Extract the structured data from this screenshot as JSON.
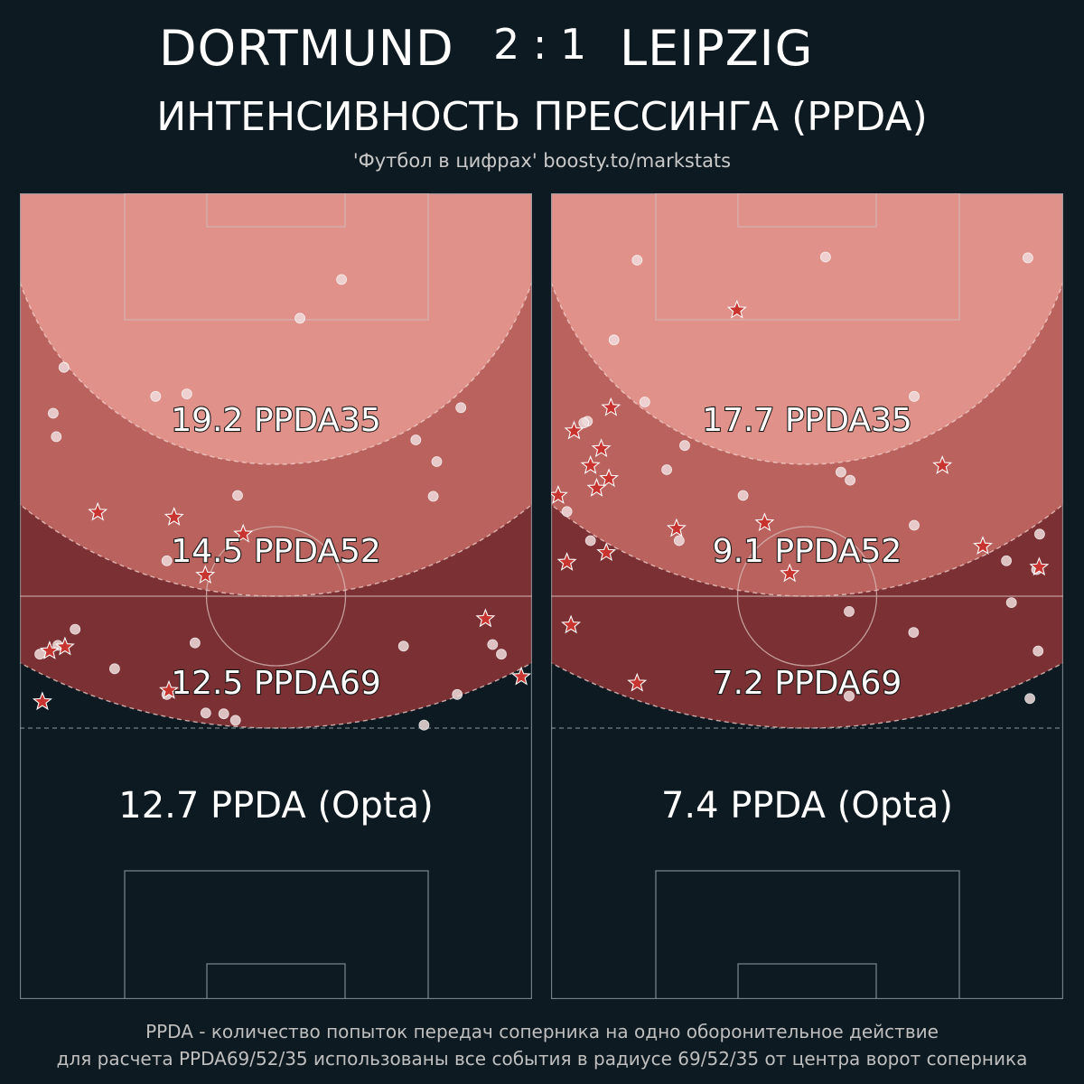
{
  "header": {
    "home_team": "DORTMUND",
    "score": "2 : 1",
    "away_team": "LEIPZIG",
    "subtitle": "ИНТЕНСИВНОСТЬ ПРЕССИНГА (PPDA)",
    "source": "'Футбол в цифрах' boosty.to/markstats"
  },
  "footnote": {
    "line1": "PPDA - количество попыток передач соперника на одно оборонительное действие",
    "line2": "для расчета PPDA69/52/35 использованы все события в радиусе 69/52/35 от центра ворот соперника"
  },
  "colors": {
    "background": "#0e1a22",
    "zone35": "#e0918a",
    "zone52": "#b9625e",
    "zone69": "#7b3033",
    "point_fill": "#f0dcdc",
    "star_fill": "#c8342f"
  },
  "chart_data": [
    {
      "type": "scatter",
      "team": "DORTMUND",
      "units": "pitch 0-100 (x across, y from opponent goal line)",
      "labels": {
        "ppda35": "19.2 PPDA35",
        "ppda52": "14.5 PPDA52",
        "ppda69": "12.5 PPDA69",
        "opta": "12.7 PPDA (Opta)"
      },
      "values": {
        "ppda35": 19.2,
        "ppda52": 14.5,
        "ppda69": 12.5,
        "opta": 12.7
      },
      "passes": [
        [
          62.8,
          10.7
        ],
        [
          54.7,
          15.5
        ],
        [
          8.6,
          21.6
        ],
        [
          26.5,
          25.2
        ],
        [
          32.6,
          24.9
        ],
        [
          6.5,
          27.3
        ],
        [
          7.1,
          30.2
        ],
        [
          86.1,
          26.6
        ],
        [
          77.3,
          30.6
        ],
        [
          81.4,
          33.3
        ],
        [
          80.7,
          37.6
        ],
        [
          42.5,
          37.5
        ],
        [
          28.7,
          45.6
        ],
        [
          10.8,
          54.1
        ],
        [
          7.4,
          56.1
        ],
        [
          3.9,
          57.2
        ],
        [
          34.2,
          55.8
        ],
        [
          74.9,
          56.2
        ],
        [
          92.3,
          56.0
        ],
        [
          94.0,
          57.2
        ],
        [
          18.5,
          59.0
        ],
        [
          28.7,
          62.2
        ],
        [
          85.4,
          62.2
        ],
        [
          36.3,
          64.5
        ],
        [
          39.8,
          64.6
        ],
        [
          42.1,
          65.4
        ],
        [
          78.9,
          66.0
        ]
      ],
      "actions": [
        [
          15.2,
          39.6
        ],
        [
          30.1,
          40.2
        ],
        [
          43.6,
          42.3
        ],
        [
          36.2,
          47.4
        ],
        [
          8.8,
          56.3
        ],
        [
          5.8,
          56.8
        ],
        [
          90.9,
          52.8
        ],
        [
          97.9,
          60.0
        ],
        [
          4.4,
          63.1
        ],
        [
          29.1,
          61.7
        ]
      ]
    },
    {
      "type": "scatter",
      "team": "LEIPZIG",
      "units": "pitch 0-100 (x across, y from opponent goal line)",
      "labels": {
        "ppda35": "17.7 PPDA35",
        "ppda52": "9.1 PPDA52",
        "ppda69": "7.2 PPDA69",
        "opta": "7.4 PPDA (Opta)"
      },
      "values": {
        "ppda35": 17.7,
        "ppda52": 9.1,
        "ppda69": 7.2,
        "opta": 7.4
      },
      "passes": [
        [
          16.8,
          8.3
        ],
        [
          53.6,
          7.9
        ],
        [
          93.1,
          8.0
        ],
        [
          12.3,
          18.2
        ],
        [
          18.3,
          25.9
        ],
        [
          70.9,
          25.2
        ],
        [
          7.1,
          28.3
        ],
        [
          26.1,
          31.3
        ],
        [
          22.6,
          34.3
        ],
        [
          56.6,
          34.6
        ],
        [
          58.4,
          35.6
        ],
        [
          37.5,
          37.5
        ],
        [
          3.1,
          39.5
        ],
        [
          70.9,
          41.2
        ],
        [
          7.7,
          43.1
        ],
        [
          25.0,
          43.1
        ],
        [
          95.4,
          42.3
        ],
        [
          88.9,
          45.6
        ],
        [
          94.8,
          46.7
        ],
        [
          89.9,
          50.8
        ],
        [
          58.2,
          51.9
        ],
        [
          70.8,
          54.5
        ],
        [
          95.1,
          56.8
        ],
        [
          58.2,
          62.4
        ],
        [
          93.5,
          62.7
        ],
        [
          6.4,
          28.5
        ]
      ],
      "actions": [
        [
          36.3,
          14.5
        ],
        [
          11.7,
          26.6
        ],
        [
          4.5,
          29.5
        ],
        [
          9.8,
          31.7
        ],
        [
          7.7,
          33.8
        ],
        [
          11.3,
          35.4
        ],
        [
          8.9,
          36.6
        ],
        [
          76.4,
          33.8
        ],
        [
          1.4,
          37.5
        ],
        [
          24.5,
          41.6
        ],
        [
          41.7,
          40.9
        ],
        [
          10.8,
          44.6
        ],
        [
          3.1,
          45.8
        ],
        [
          46.6,
          47.2
        ],
        [
          84.3,
          43.8
        ],
        [
          95.3,
          46.4
        ],
        [
          3.9,
          53.6
        ],
        [
          16.8,
          60.8
        ]
      ]
    }
  ]
}
